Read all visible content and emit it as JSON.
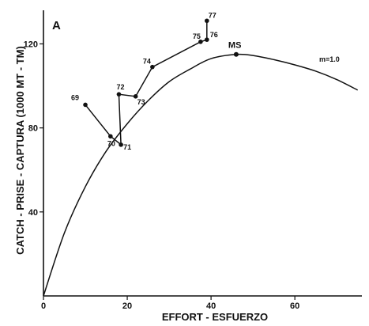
{
  "chart_data": {
    "type": "line",
    "panel_label": "A",
    "xlabel": "EFFORT - ESFUERZO",
    "ylabel": "CATCH - PRISE - CAPTURA (1000 MT - TM)",
    "xlim": [
      0,
      76
    ],
    "ylim": [
      0,
      136
    ],
    "xticks": [
      0,
      20,
      40,
      60
    ],
    "yticks": [
      40,
      80,
      120
    ],
    "grid": false,
    "legend": "none",
    "series": [
      {
        "kind": "trajectory",
        "points": [
          {
            "label": "69",
            "x": 10,
            "y": 91
          },
          {
            "label": "70",
            "x": 16,
            "y": 76
          },
          {
            "label": "71",
            "x": 18.5,
            "y": 72
          },
          {
            "label": "72",
            "x": 18,
            "y": 96
          },
          {
            "label": "73",
            "x": 22,
            "y": 95
          },
          {
            "label": "74",
            "x": 26,
            "y": 109
          },
          {
            "label": "75",
            "x": 37.5,
            "y": 121
          },
          {
            "label": "76",
            "x": 39,
            "y": 122
          },
          {
            "label": "77",
            "x": 39,
            "y": 131
          }
        ]
      },
      {
        "kind": "curve",
        "label": "m=1.0",
        "peak_label": "MS",
        "peak": {
          "x": 46,
          "y": 115
        },
        "x": [
          0,
          5,
          10,
          15,
          20,
          25,
          30,
          35,
          40,
          46,
          50,
          55,
          60,
          65,
          70,
          75
        ],
        "y": [
          0,
          30,
          52,
          69,
          82,
          93,
          102,
          108,
          113,
          115,
          114.5,
          112.5,
          110,
          107,
          103,
          98
        ]
      }
    ]
  }
}
